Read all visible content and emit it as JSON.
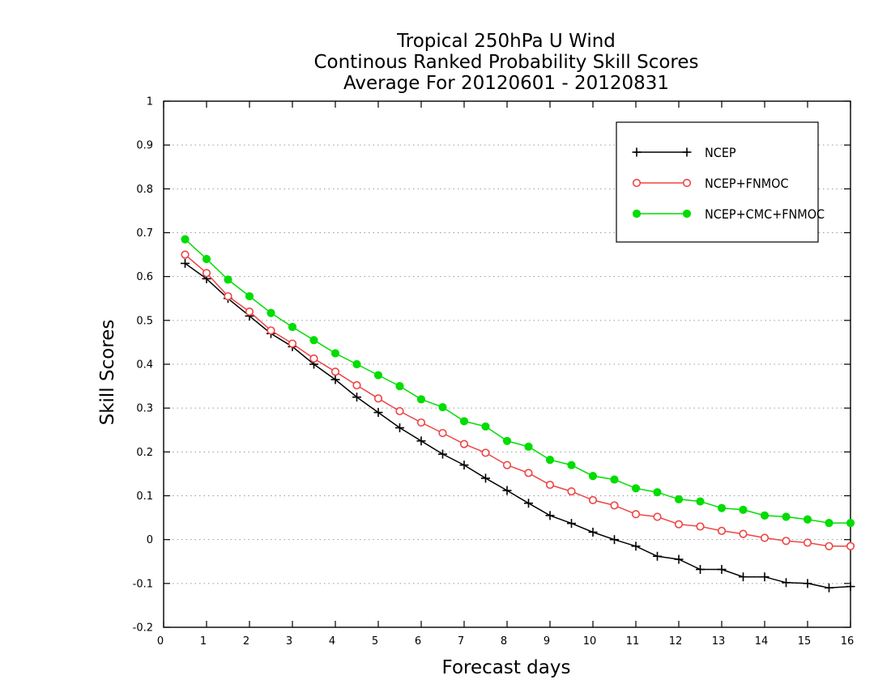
{
  "chart_data": {
    "type": "line",
    "title": [
      "Tropical 250hPa U Wind",
      "Continous Ranked Probability Skill Scores",
      "Average For 20120601 - 20120831"
    ],
    "xlabel": "Forecast days",
    "ylabel": "Skill Scores",
    "xlim": [
      0,
      16
    ],
    "ylim": [
      -0.2,
      1
    ],
    "xticks": [
      0,
      1,
      2,
      3,
      4,
      5,
      6,
      7,
      8,
      9,
      10,
      11,
      12,
      13,
      14,
      15,
      16
    ],
    "yticks": [
      -0.2,
      -0.1,
      0,
      0.1,
      0.2,
      0.3,
      0.4,
      0.5,
      0.6,
      0.7,
      0.8,
      0.9,
      1
    ],
    "ytick_labels": [
      "-0.2",
      "-0.1",
      "0",
      "0.1",
      "0.2",
      "0.3",
      "0.4",
      "0.5",
      "0.6",
      "0.7",
      "0.8",
      "0.9",
      "1"
    ],
    "grid": "horizontal-dotted",
    "legend_position": "top-right",
    "x": [
      0.5,
      1,
      1.5,
      2,
      2.5,
      3,
      3.5,
      4,
      4.5,
      5,
      5.5,
      6,
      6.5,
      7,
      7.5,
      8,
      8.5,
      9,
      9.5,
      10,
      10.5,
      11,
      11.5,
      12,
      12.5,
      13,
      13.5,
      14,
      14.5,
      15,
      15.5,
      16
    ],
    "series": [
      {
        "name": "NCEP",
        "color": "#000000",
        "marker": "plus",
        "values": [
          0.63,
          0.595,
          0.55,
          0.51,
          0.47,
          0.44,
          0.4,
          0.365,
          0.325,
          0.29,
          0.255,
          0.225,
          0.195,
          0.17,
          0.14,
          0.112,
          0.083,
          0.055,
          0.037,
          0.017,
          0.0,
          -0.015,
          -0.038,
          -0.045,
          -0.068,
          -0.068,
          -0.085,
          -0.085,
          -0.098,
          -0.1,
          -0.11,
          -0.107
        ]
      },
      {
        "name": "NCEP+FNMOC",
        "color": "#ee4444",
        "marker": "open-circle",
        "values": [
          0.65,
          0.608,
          0.555,
          0.52,
          0.477,
          0.447,
          0.413,
          0.383,
          0.352,
          0.322,
          0.293,
          0.267,
          0.243,
          0.218,
          0.198,
          0.17,
          0.152,
          0.125,
          0.11,
          0.09,
          0.078,
          0.058,
          0.052,
          0.035,
          0.03,
          0.02,
          0.013,
          0.004,
          -0.003,
          -0.007,
          -0.015,
          -0.015
        ]
      },
      {
        "name": "NCEP+CMC+FNMOC",
        "color": "#00dd00",
        "marker": "filled-circle",
        "values": [
          0.685,
          0.64,
          0.593,
          0.555,
          0.517,
          0.485,
          0.455,
          0.425,
          0.4,
          0.375,
          0.35,
          0.32,
          0.302,
          0.27,
          0.258,
          0.225,
          0.212,
          0.182,
          0.17,
          0.145,
          0.137,
          0.117,
          0.108,
          0.092,
          0.087,
          0.072,
          0.068,
          0.055,
          0.052,
          0.046,
          0.038,
          0.038
        ]
      }
    ]
  }
}
